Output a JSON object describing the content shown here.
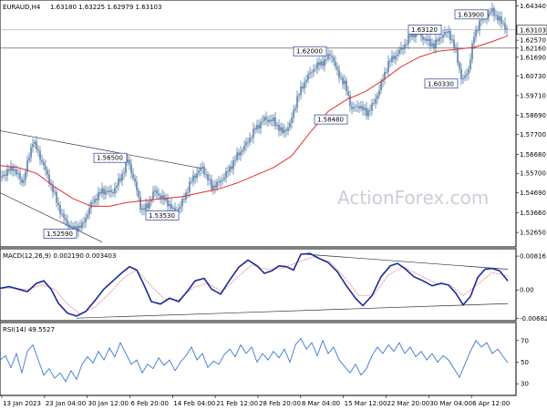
{
  "header": {
    "symbol": "EURAUD,H4",
    "ohlc": "1.63180 1.63225 1.62979 1.63103"
  },
  "watermark": "ActionForex.com",
  "colors": {
    "candle": "#5a7fa8",
    "ma": "#e03030",
    "macd": "#1a2a9a",
    "signal": "#e08080",
    "rsi": "#3a78d0",
    "trend": "#333333",
    "annotation_border": "#2a3a9a"
  },
  "chart_data": [
    {
      "type": "candlestick",
      "title": "EURAUD,H4",
      "ylim": [
        1.5195,
        1.6455
      ],
      "y_ticks": [
        "1.64340",
        "1.63103",
        "1.62570",
        "1.62160",
        "1.61690",
        "1.60730",
        "1.59710",
        "1.58690",
        "1.57700",
        "1.56680",
        "1.55700",
        "1.54690",
        "1.53660",
        "1.52650"
      ],
      "current_price": "1.63103",
      "reference_price": "1.62160",
      "x_labels": [
        "13 Jan 2023",
        "23 Jan 04:00",
        "30 Jan 12:00",
        "6 Feb 20:00",
        "14 Feb 04:00",
        "21 Feb 12:00",
        "28 Feb 20:00",
        "8 Mar 04:00",
        "15 Mar 12:00",
        "22 Mar 20:00",
        "30 Mar 04:00",
        "6 Apr 12:00"
      ],
      "close_path": [
        [
          0,
          1.555
        ],
        [
          14,
          1.56
        ],
        [
          25,
          1.552
        ],
        [
          36,
          1.574
        ],
        [
          47,
          1.562
        ],
        [
          58,
          1.548
        ],
        [
          68,
          1.535
        ],
        [
          79,
          1.528
        ],
        [
          90,
          1.53
        ],
        [
          101,
          1.542
        ],
        [
          112,
          1.548
        ],
        [
          123,
          1.547
        ],
        [
          133,
          1.555
        ],
        [
          140,
          1.564
        ],
        [
          148,
          1.552
        ],
        [
          155,
          1.538
        ],
        [
          162,
          1.54
        ],
        [
          169,
          1.548
        ],
        [
          176,
          1.545
        ],
        [
          184,
          1.542
        ],
        [
          191,
          1.537
        ],
        [
          198,
          1.54
        ],
        [
          205,
          1.548
        ],
        [
          212,
          1.555
        ],
        [
          222,
          1.56
        ],
        [
          232,
          1.55
        ],
        [
          240,
          1.552
        ],
        [
          250,
          1.558
        ],
        [
          260,
          1.566
        ],
        [
          270,
          1.572
        ],
        [
          280,
          1.58
        ],
        [
          290,
          1.585
        ],
        [
          300,
          1.584
        ],
        [
          310,
          1.578
        ],
        [
          318,
          1.582
        ],
        [
          326,
          1.596
        ],
        [
          336,
          1.606
        ],
        [
          346,
          1.612
        ],
        [
          356,
          1.615
        ],
        [
          363,
          1.619
        ],
        [
          370,
          1.609
        ],
        [
          378,
          1.603
        ],
        [
          386,
          1.59
        ],
        [
          394,
          1.592
        ],
        [
          402,
          1.588
        ],
        [
          410,
          1.593
        ],
        [
          418,
          1.603
        ],
        [
          426,
          1.614
        ],
        [
          434,
          1.618
        ],
        [
          442,
          1.622
        ],
        [
          450,
          1.628
        ],
        [
          458,
          1.63
        ],
        [
          466,
          1.626
        ],
        [
          476,
          1.623
        ],
        [
          484,
          1.628
        ],
        [
          492,
          1.63
        ],
        [
          500,
          1.62
        ],
        [
          507,
          1.604
        ],
        [
          514,
          1.611
        ],
        [
          520,
          1.628
        ],
        [
          527,
          1.636
        ],
        [
          533,
          1.638
        ],
        [
          540,
          1.641
        ],
        [
          546,
          1.637
        ],
        [
          552,
          1.634
        ],
        [
          557,
          1.631
        ]
      ],
      "moving_average": [
        [
          0,
          1.561
        ],
        [
          20,
          1.56
        ],
        [
          40,
          1.557
        ],
        [
          60,
          1.55
        ],
        [
          80,
          1.544
        ],
        [
          100,
          1.54
        ],
        [
          120,
          1.54
        ],
        [
          140,
          1.542
        ],
        [
          160,
          1.543
        ],
        [
          180,
          1.544
        ],
        [
          200,
          1.545
        ],
        [
          220,
          1.547
        ],
        [
          240,
          1.549
        ],
        [
          260,
          1.552
        ],
        [
          280,
          1.556
        ],
        [
          300,
          1.56
        ],
        [
          320,
          1.566
        ],
        [
          340,
          1.578
        ],
        [
          360,
          1.589
        ],
        [
          380,
          1.595
        ],
        [
          400,
          1.599
        ],
        [
          420,
          1.605
        ],
        [
          440,
          1.612
        ],
        [
          460,
          1.617
        ],
        [
          480,
          1.62
        ],
        [
          500,
          1.621
        ],
        [
          520,
          1.622
        ],
        [
          540,
          1.625
        ],
        [
          557,
          1.628
        ]
      ],
      "annotations": [
        {
          "text": "1.63900",
          "x": 517,
          "price": 1.639
        },
        {
          "text": "1.63120",
          "x": 466,
          "price": 1.6312
        },
        {
          "text": "1.62000",
          "x": 340,
          "price": 1.62
        },
        {
          "text": "1.60330",
          "x": 484,
          "price": 1.6033
        },
        {
          "text": "1.58480",
          "x": 363,
          "price": 1.5848
        },
        {
          "text": "1.56500",
          "x": 121,
          "price": 1.565
        },
        {
          "text": "1.53530",
          "x": 178,
          "price": 1.5353
        },
        {
          "text": "1.52590",
          "x": 66,
          "price": 1.5259
        }
      ],
      "trendlines": [
        {
          "from": [
            0,
            1.579
          ],
          "to": [
            222,
            1.5595
          ]
        },
        {
          "from": [
            0,
            1.547
          ],
          "to": [
            112,
            1.5215
          ]
        }
      ]
    },
    {
      "type": "line",
      "title": "MACD(12,26,9) 0.002190 0.003403",
      "ylim": [
        -0.0072,
        0.0095
      ],
      "y_ticks": [
        "0.00816",
        "0.00",
        "-0.006821"
      ],
      "macd": [
        [
          0,
          0.0004
        ],
        [
          10,
          0.0008
        ],
        [
          20,
          0.0002
        ],
        [
          30,
          -0.0004
        ],
        [
          40,
          0.0016
        ],
        [
          48,
          0.0022
        ],
        [
          56,
          0.0002
        ],
        [
          64,
          -0.0032
        ],
        [
          74,
          -0.0056
        ],
        [
          84,
          -0.0063
        ],
        [
          94,
          -0.0052
        ],
        [
          104,
          -0.0026
        ],
        [
          114,
          0.0002
        ],
        [
          124,
          0.0022
        ],
        [
          134,
          0.0042
        ],
        [
          142,
          0.0056
        ],
        [
          150,
          0.0048
        ],
        [
          158,
          0.0012
        ],
        [
          166,
          -0.0028
        ],
        [
          176,
          -0.0034
        ],
        [
          186,
          -0.002
        ],
        [
          196,
          -0.0028
        ],
        [
          206,
          -0.0002
        ],
        [
          214,
          0.0022
        ],
        [
          224,
          0.0028
        ],
        [
          232,
          0.0002
        ],
        [
          242,
          -0.001
        ],
        [
          252,
          0.0024
        ],
        [
          262,
          0.0055
        ],
        [
          272,
          0.0072
        ],
        [
          282,
          0.0058
        ],
        [
          290,
          0.004
        ],
        [
          298,
          0.0046
        ],
        [
          306,
          0.0058
        ],
        [
          314,
          0.0056
        ],
        [
          322,
          0.0048
        ],
        [
          330,
          0.0086
        ],
        [
          340,
          0.0088
        ],
        [
          350,
          0.0076
        ],
        [
          360,
          0.0066
        ],
        [
          370,
          0.0044
        ],
        [
          380,
          0.001
        ],
        [
          390,
          -0.002
        ],
        [
          398,
          -0.0038
        ],
        [
          408,
          -0.0014
        ],
        [
          418,
          0.0032
        ],
        [
          428,
          0.0058
        ],
        [
          436,
          0.0064
        ],
        [
          444,
          0.0052
        ],
        [
          454,
          0.0032
        ],
        [
          464,
          0.0022
        ],
        [
          474,
          0.001
        ],
        [
          484,
          0.0016
        ],
        [
          492,
          0.0012
        ],
        [
          500,
          -0.0008
        ],
        [
          508,
          -0.0036
        ],
        [
          516,
          -0.0016
        ],
        [
          524,
          0.003
        ],
        [
          532,
          0.005
        ],
        [
          540,
          0.0052
        ],
        [
          548,
          0.0046
        ],
        [
          557,
          0.0022
        ]
      ],
      "signal": [
        [
          0,
          0.0003
        ],
        [
          14,
          0.0005
        ],
        [
          30,
          0.0001
        ],
        [
          46,
          0.0012
        ],
        [
          60,
          0.0002
        ],
        [
          74,
          -0.0034
        ],
        [
          88,
          -0.0058
        ],
        [
          104,
          -0.0042
        ],
        [
          120,
          -0.0008
        ],
        [
          136,
          0.003
        ],
        [
          150,
          0.0048
        ],
        [
          164,
          0.0014
        ],
        [
          180,
          -0.0022
        ],
        [
          196,
          -0.0024
        ],
        [
          212,
          0.0006
        ],
        [
          228,
          0.0016
        ],
        [
          244,
          -0.0004
        ],
        [
          260,
          0.003
        ],
        [
          276,
          0.006
        ],
        [
          292,
          0.005
        ],
        [
          310,
          0.0052
        ],
        [
          328,
          0.0068
        ],
        [
          344,
          0.008
        ],
        [
          362,
          0.0068
        ],
        [
          378,
          0.003
        ],
        [
          394,
          -0.0014
        ],
        [
          410,
          -0.0012
        ],
        [
          426,
          0.0036
        ],
        [
          442,
          0.0056
        ],
        [
          460,
          0.0036
        ],
        [
          478,
          0.0016
        ],
        [
          494,
          0.0012
        ],
        [
          508,
          -0.0014
        ],
        [
          524,
          0.0014
        ],
        [
          540,
          0.0042
        ],
        [
          557,
          0.0034
        ]
      ],
      "trendlines": [
        {
          "from": [
            336,
            0.0086
          ],
          "to": [
            557,
            0.005
          ]
        },
        {
          "from": [
            84,
            -0.0068
          ],
          "to": [
            557,
            -0.0033
          ]
        }
      ]
    },
    {
      "type": "line",
      "title": "RSI(14) 49.5527",
      "ylim": [
        20,
        85
      ],
      "y_ticks": [
        "70",
        "50",
        "30"
      ],
      "rsi": [
        [
          0,
          52
        ],
        [
          6,
          56
        ],
        [
          12,
          45
        ],
        [
          18,
          58
        ],
        [
          24,
          40
        ],
        [
          30,
          60
        ],
        [
          36,
          66
        ],
        [
          42,
          52
        ],
        [
          48,
          38
        ],
        [
          54,
          44
        ],
        [
          60,
          35
        ],
        [
          66,
          40
        ],
        [
          72,
          32
        ],
        [
          78,
          42
        ],
        [
          84,
          34
        ],
        [
          90,
          48
        ],
        [
          96,
          55
        ],
        [
          102,
          49
        ],
        [
          108,
          60
        ],
        [
          114,
          52
        ],
        [
          120,
          63
        ],
        [
          126,
          55
        ],
        [
          132,
          68
        ],
        [
          138,
          58
        ],
        [
          144,
          48
        ],
        [
          150,
          52
        ],
        [
          156,
          40
        ],
        [
          162,
          48
        ],
        [
          168,
          44
        ],
        [
          174,
          54
        ],
        [
          180,
          47
        ],
        [
          186,
          52
        ],
        [
          192,
          42
        ],
        [
          198,
          50
        ],
        [
          204,
          56
        ],
        [
          210,
          64
        ],
        [
          216,
          52
        ],
        [
          222,
          58
        ],
        [
          228,
          45
        ],
        [
          234,
          51
        ],
        [
          240,
          48
        ],
        [
          246,
          57
        ],
        [
          252,
          62
        ],
        [
          258,
          55
        ],
        [
          264,
          66
        ],
        [
          270,
          58
        ],
        [
          276,
          64
        ],
        [
          282,
          50
        ],
        [
          288,
          58
        ],
        [
          294,
          52
        ],
        [
          300,
          60
        ],
        [
          306,
          54
        ],
        [
          312,
          62
        ],
        [
          318,
          50
        ],
        [
          324,
          66
        ],
        [
          330,
          72
        ],
        [
          336,
          62
        ],
        [
          342,
          68
        ],
        [
          348,
          56
        ],
        [
          354,
          70
        ],
        [
          360,
          58
        ],
        [
          366,
          64
        ],
        [
          372,
          52
        ],
        [
          378,
          46
        ],
        [
          384,
          40
        ],
        [
          390,
          48
        ],
        [
          396,
          38
        ],
        [
          402,
          44
        ],
        [
          408,
          56
        ],
        [
          414,
          64
        ],
        [
          420,
          58
        ],
        [
          426,
          66
        ],
        [
          432,
          60
        ],
        [
          438,
          68
        ],
        [
          444,
          58
        ],
        [
          450,
          64
        ],
        [
          456,
          55
        ],
        [
          462,
          60
        ],
        [
          468,
          52
        ],
        [
          474,
          58
        ],
        [
          480,
          50
        ],
        [
          486,
          56
        ],
        [
          492,
          52
        ],
        [
          498,
          44
        ],
        [
          504,
          36
        ],
        [
          510,
          48
        ],
        [
          516,
          60
        ],
        [
          522,
          70
        ],
        [
          528,
          64
        ],
        [
          534,
          68
        ],
        [
          540,
          58
        ],
        [
          546,
          62
        ],
        [
          552,
          55
        ],
        [
          557,
          49.5
        ]
      ]
    }
  ]
}
